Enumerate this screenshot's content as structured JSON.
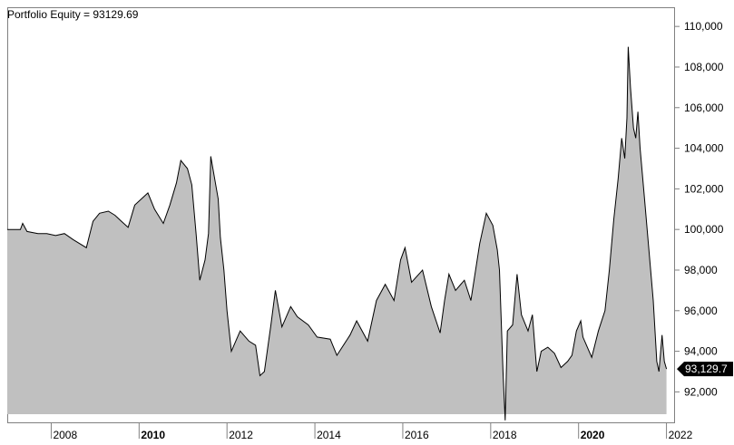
{
  "chart_data": {
    "type": "area",
    "title": "Portfolio Equity = 93129.69",
    "xlabel": "",
    "ylabel": "",
    "y_axis_side": "right",
    "ylim": [
      90500,
      110900
    ],
    "y_ticks": [
      {
        "value": 92000,
        "label": "92,000"
      },
      {
        "value": 94000,
        "label": "94,000"
      },
      {
        "value": 96000,
        "label": "96,000"
      },
      {
        "value": 98000,
        "label": "98,000"
      },
      {
        "value": 100000,
        "label": "100,000"
      },
      {
        "value": 102000,
        "label": "102,000"
      },
      {
        "value": 104000,
        "label": "104,000"
      },
      {
        "value": 106000,
        "label": "106,000"
      },
      {
        "value": 108000,
        "label": "108,000"
      },
      {
        "value": 110000,
        "label": "110,000"
      }
    ],
    "xlim": [
      2007.0,
      2022.05
    ],
    "x_ticks": [
      {
        "value": 2008,
        "label": "2008",
        "bold": false
      },
      {
        "value": 2010,
        "label": "2010",
        "bold": true
      },
      {
        "value": 2012,
        "label": "2012",
        "bold": false
      },
      {
        "value": 2014,
        "label": "2014",
        "bold": false
      },
      {
        "value": 2016,
        "label": "2016",
        "bold": false
      },
      {
        "value": 2018,
        "label": "2018",
        "bold": false
      },
      {
        "value": 2020,
        "label": "2020",
        "bold": true
      },
      {
        "value": 2022,
        "label": "2022",
        "bold": false
      }
    ],
    "last_value_label": "93,129.7",
    "fill_color": "#c0c0c0",
    "line_color": "#000000",
    "grid": false,
    "legend": "none",
    "series": [
      {
        "points": [
          [
            2007.0,
            100000
          ],
          [
            2007.3,
            100000
          ],
          [
            2007.35,
            100300
          ],
          [
            2007.45,
            99900
          ],
          [
            2007.7,
            99800
          ],
          [
            2007.9,
            99800
          ],
          [
            2008.1,
            99700
          ],
          [
            2008.3,
            99800
          ],
          [
            2008.5,
            99500
          ],
          [
            2008.8,
            99100
          ],
          [
            2008.95,
            100400
          ],
          [
            2009.1,
            100800
          ],
          [
            2009.3,
            100900
          ],
          [
            2009.45,
            100700
          ],
          [
            2009.6,
            100400
          ],
          [
            2009.75,
            100100
          ],
          [
            2009.9,
            101200
          ],
          [
            2010.05,
            101500
          ],
          [
            2010.2,
            101800
          ],
          [
            2010.35,
            101000
          ],
          [
            2010.55,
            100300
          ],
          [
            2010.7,
            101200
          ],
          [
            2010.85,
            102300
          ],
          [
            2010.95,
            103400
          ],
          [
            2011.1,
            103000
          ],
          [
            2011.2,
            102200
          ],
          [
            2011.3,
            99700
          ],
          [
            2011.38,
            97500
          ],
          [
            2011.5,
            98500
          ],
          [
            2011.58,
            99800
          ],
          [
            2011.63,
            103600
          ],
          [
            2011.72,
            102500
          ],
          [
            2011.8,
            101500
          ],
          [
            2011.85,
            99600
          ],
          [
            2011.93,
            98000
          ],
          [
            2012.0,
            96000
          ],
          [
            2012.1,
            94000
          ],
          [
            2012.3,
            95000
          ],
          [
            2012.5,
            94500
          ],
          [
            2012.65,
            94300
          ],
          [
            2012.75,
            92800
          ],
          [
            2012.85,
            93000
          ],
          [
            2013.0,
            95300
          ],
          [
            2013.1,
            97000
          ],
          [
            2013.25,
            95200
          ],
          [
            2013.45,
            96200
          ],
          [
            2013.6,
            95700
          ],
          [
            2013.85,
            95300
          ],
          [
            2014.05,
            94700
          ],
          [
            2014.35,
            94600
          ],
          [
            2014.5,
            93800
          ],
          [
            2014.8,
            94800
          ],
          [
            2014.95,
            95500
          ],
          [
            2015.2,
            94500
          ],
          [
            2015.4,
            96500
          ],
          [
            2015.6,
            97300
          ],
          [
            2015.8,
            96500
          ],
          [
            2015.95,
            98500
          ],
          [
            2016.05,
            99100
          ],
          [
            2016.2,
            97400
          ],
          [
            2016.45,
            98000
          ],
          [
            2016.65,
            96200
          ],
          [
            2016.85,
            94900
          ],
          [
            2016.95,
            96500
          ],
          [
            2017.05,
            97800
          ],
          [
            2017.2,
            97000
          ],
          [
            2017.4,
            97500
          ],
          [
            2017.55,
            96500
          ],
          [
            2017.75,
            99300
          ],
          [
            2017.9,
            100800
          ],
          [
            2018.05,
            100200
          ],
          [
            2018.15,
            99000
          ],
          [
            2018.2,
            98000
          ],
          [
            2018.28,
            93000
          ],
          [
            2018.33,
            90600
          ],
          [
            2018.38,
            95000
          ],
          [
            2018.5,
            95300
          ],
          [
            2018.6,
            97800
          ],
          [
            2018.7,
            95800
          ],
          [
            2018.85,
            95000
          ],
          [
            2018.95,
            95800
          ],
          [
            2019.05,
            93000
          ],
          [
            2019.15,
            94000
          ],
          [
            2019.3,
            94200
          ],
          [
            2019.45,
            93900
          ],
          [
            2019.6,
            93200
          ],
          [
            2019.75,
            93500
          ],
          [
            2019.85,
            93800
          ],
          [
            2019.95,
            95000
          ],
          [
            2020.05,
            95500
          ],
          [
            2020.1,
            94700
          ],
          [
            2020.3,
            93700
          ],
          [
            2020.45,
            95000
          ],
          [
            2020.6,
            96000
          ],
          [
            2020.7,
            98000
          ],
          [
            2020.8,
            100500
          ],
          [
            2020.9,
            102500
          ],
          [
            2020.98,
            104500
          ],
          [
            2021.05,
            103500
          ],
          [
            2021.1,
            105500
          ],
          [
            2021.13,
            109000
          ],
          [
            2021.18,
            107000
          ],
          [
            2021.25,
            105000
          ],
          [
            2021.3,
            104500
          ],
          [
            2021.35,
            105800
          ],
          [
            2021.4,
            104000
          ],
          [
            2021.5,
            101500
          ],
          [
            2021.6,
            99000
          ],
          [
            2021.7,
            96500
          ],
          [
            2021.78,
            93500
          ],
          [
            2021.83,
            93000
          ],
          [
            2021.9,
            94800
          ],
          [
            2021.95,
            93500
          ],
          [
            2022.0,
            93129.69
          ]
        ]
      }
    ]
  }
}
